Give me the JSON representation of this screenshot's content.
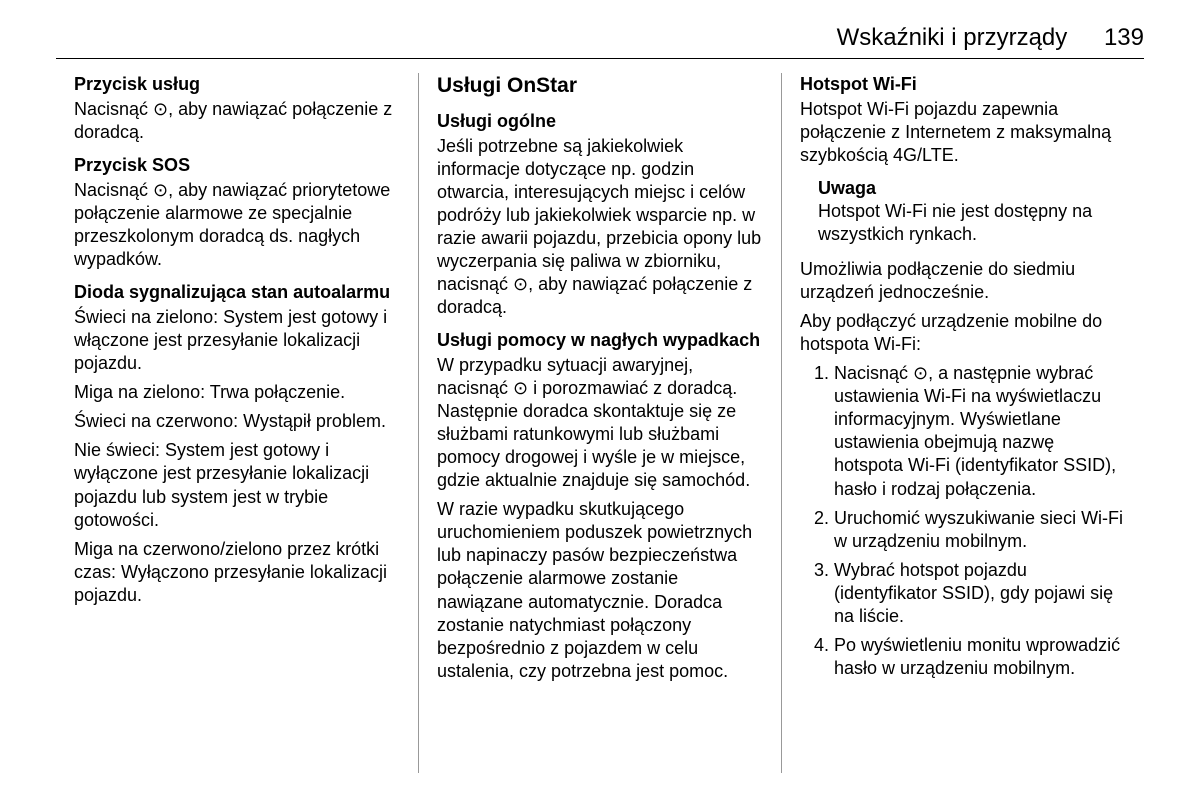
{
  "header": {
    "title": "Wskaźniki i przyrządy",
    "page": "139"
  },
  "col1": {
    "s1_title": "Przycisk usług",
    "s1_p": "Nacisnąć ⊙, aby nawiązać połączenie z doradcą.",
    "s2_title": "Przycisk SOS",
    "s2_p": "Nacisnąć ⊙, aby nawiązać priorytetowe połączenie alarmowe ze specjalnie przeszkolonym doradcą ds. nagłych wypadków.",
    "s3_title": "Dioda sygnalizująca stan autoalarmu",
    "s3_p1": "Świeci na zielono: System jest gotowy i włączone jest przesyłanie lokalizacji pojazdu.",
    "s3_p2": "Miga na zielono: Trwa połączenie.",
    "s3_p3": "Świeci na czerwono: Wystąpił problem.",
    "s3_p4": "Nie świeci: System jest gotowy i wyłączone jest przesyłanie lokalizacji pojazdu lub system jest w trybie gotowości.",
    "s3_p5": "Miga na czerwono/zielono przez krótki czas: Wyłączono przesyłanie lokalizacji pojazdu."
  },
  "col2": {
    "title": "Usługi OnStar",
    "s1_title": "Usługi ogólne",
    "s1_p": "Jeśli potrzebne są jakiekolwiek informacje dotyczące np. godzin otwarcia, interesujących miejsc i celów podróży lub jakiekolwiek wsparcie np. w razie awarii pojazdu, przebicia opony lub wyczerpania się paliwa w zbiorniku, nacisnąć ⊙, aby nawiązać połączenie z doradcą.",
    "s2_title": "Usługi pomocy w nagłych wypadkach",
    "s2_p1": "W przypadku sytuacji awaryjnej, nacisnąć ⊙ i porozmawiać z doradcą. Następnie doradca skontaktuje się ze służbami ratunkowymi lub służbami pomocy drogowej i wyśle je w miejsce, gdzie aktualnie znajduje się samochód.",
    "s2_p2": "W razie wypadku skutkującego uruchomieniem poduszek powietrznych lub napinaczy pasów bezpieczeństwa połączenie alarmowe zostanie nawiązane automatycznie. Doradca zostanie natychmiast połączony bezpośrednio z pojazdem w celu ustalenia, czy potrzebna jest pomoc."
  },
  "col3": {
    "s1_title": "Hotspot Wi-Fi",
    "s1_p": "Hotspot Wi-Fi pojazdu zapewnia połączenie z Internetem z maksymalną szybkością 4G/LTE.",
    "note_title": "Uwaga",
    "note_p": "Hotspot Wi-Fi nie jest dostępny na wszystkich rynkach.",
    "s2_p1": "Umożliwia podłączenie do siedmiu urządzeń jednocześnie.",
    "s2_p2": "Aby podłączyć urządzenie mobilne do hotspota Wi-Fi:",
    "li1": "Nacisnąć ⊙, a następnie wybrać ustawienia Wi-Fi na wyświetlaczu informacyjnym. Wyświetlane ustawienia obejmują nazwę hotspota Wi-Fi (identyfikator SSID), hasło i rodzaj połączenia.",
    "li2": "Uruchomić wyszukiwanie sieci Wi-Fi w urządzeniu mobilnym.",
    "li3": "Wybrać hotspot pojazdu (identyfikator SSID), gdy pojawi się na liście.",
    "li4": "Po wyświetleniu monitu wprowadzić hasło w urządzeniu mobilnym."
  }
}
